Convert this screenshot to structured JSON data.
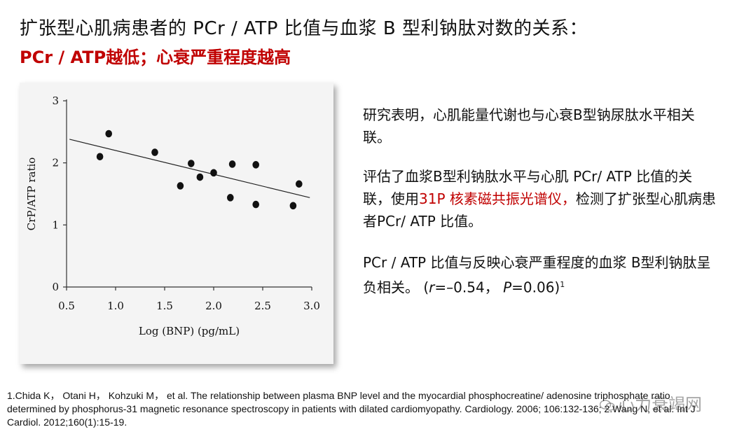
{
  "slide": {
    "title": "扩张型心肌病患者的 PCr / ATP 比值与血浆 B 型利钠肽对数的关系：",
    "subtitle": "PCr / ATP越低；心衰严重程度越高",
    "paragraph1": "研究表明，心肌能量代谢也与心衰B型钠尿肽水平相关联。",
    "paragraph2_a": "评估了血浆B型利钠肽水平与心肌 PCr/ ATP 比值的关联，使用",
    "paragraph2_highlight": "31P 核素磁共振光谱仪，",
    "paragraph2_b": "检测了扩张型心肌病患者PCr/ ATP 比值。",
    "paragraph3_a": "PCr / ATP 比值与反映心衰严重程度的血浆 B型利钠肽呈负相关。 (",
    "paragraph3_r": "r",
    "paragraph3_rval": "=–0.54，  ",
    "paragraph3_p": "P",
    "paragraph3_pval": "=0.06)",
    "paragraph3_sup": "1",
    "references": "1.Chida K， Otani H， Kohzuki M， et al. The relationship between plasma BNP level and the myocardial phosphocreatine/ adenosine triphosphate ratio determined by phosphorus-31 magnetic resonance spectroscopy in patients with dilated cardiomyopathy. Cardiology. 2006; 106:132-136; 2.Wang N, et al. Int J Cardiol. 2012;160(1):15-19.",
    "watermark": "心力衰竭网",
    "accent_color": "#c00000"
  },
  "chart_data": {
    "type": "scatter",
    "title": "",
    "xlabel": "Log (BNP) (pg/mL)",
    "ylabel": "CrP/ATP ratio",
    "xlim": [
      0.5,
      3.0
    ],
    "ylim": [
      0,
      3
    ],
    "xticks": [
      "0.5",
      "1.0",
      "1.5",
      "2.0",
      "2.5",
      "3.0"
    ],
    "yticks": [
      "0",
      "1",
      "2",
      "3"
    ],
    "xtick_values": [
      0.5,
      1.0,
      1.5,
      2.0,
      2.5,
      3.0
    ],
    "ytick_values": [
      0,
      1,
      2,
      3
    ],
    "points": [
      {
        "x": 0.84,
        "y": 2.1
      },
      {
        "x": 0.93,
        "y": 2.47
      },
      {
        "x": 1.4,
        "y": 2.17
      },
      {
        "x": 1.66,
        "y": 1.63
      },
      {
        "x": 1.77,
        "y": 1.99
      },
      {
        "x": 1.86,
        "y": 1.77
      },
      {
        "x": 2.0,
        "y": 1.84
      },
      {
        "x": 2.17,
        "y": 1.44
      },
      {
        "x": 2.19,
        "y": 1.98
      },
      {
        "x": 2.43,
        "y": 1.97
      },
      {
        "x": 2.43,
        "y": 1.33
      },
      {
        "x": 2.81,
        "y": 1.31
      },
      {
        "x": 2.87,
        "y": 1.66
      }
    ],
    "trendline": {
      "x": [
        0.53,
        2.98
      ],
      "y": [
        2.38,
        1.44
      ]
    }
  }
}
